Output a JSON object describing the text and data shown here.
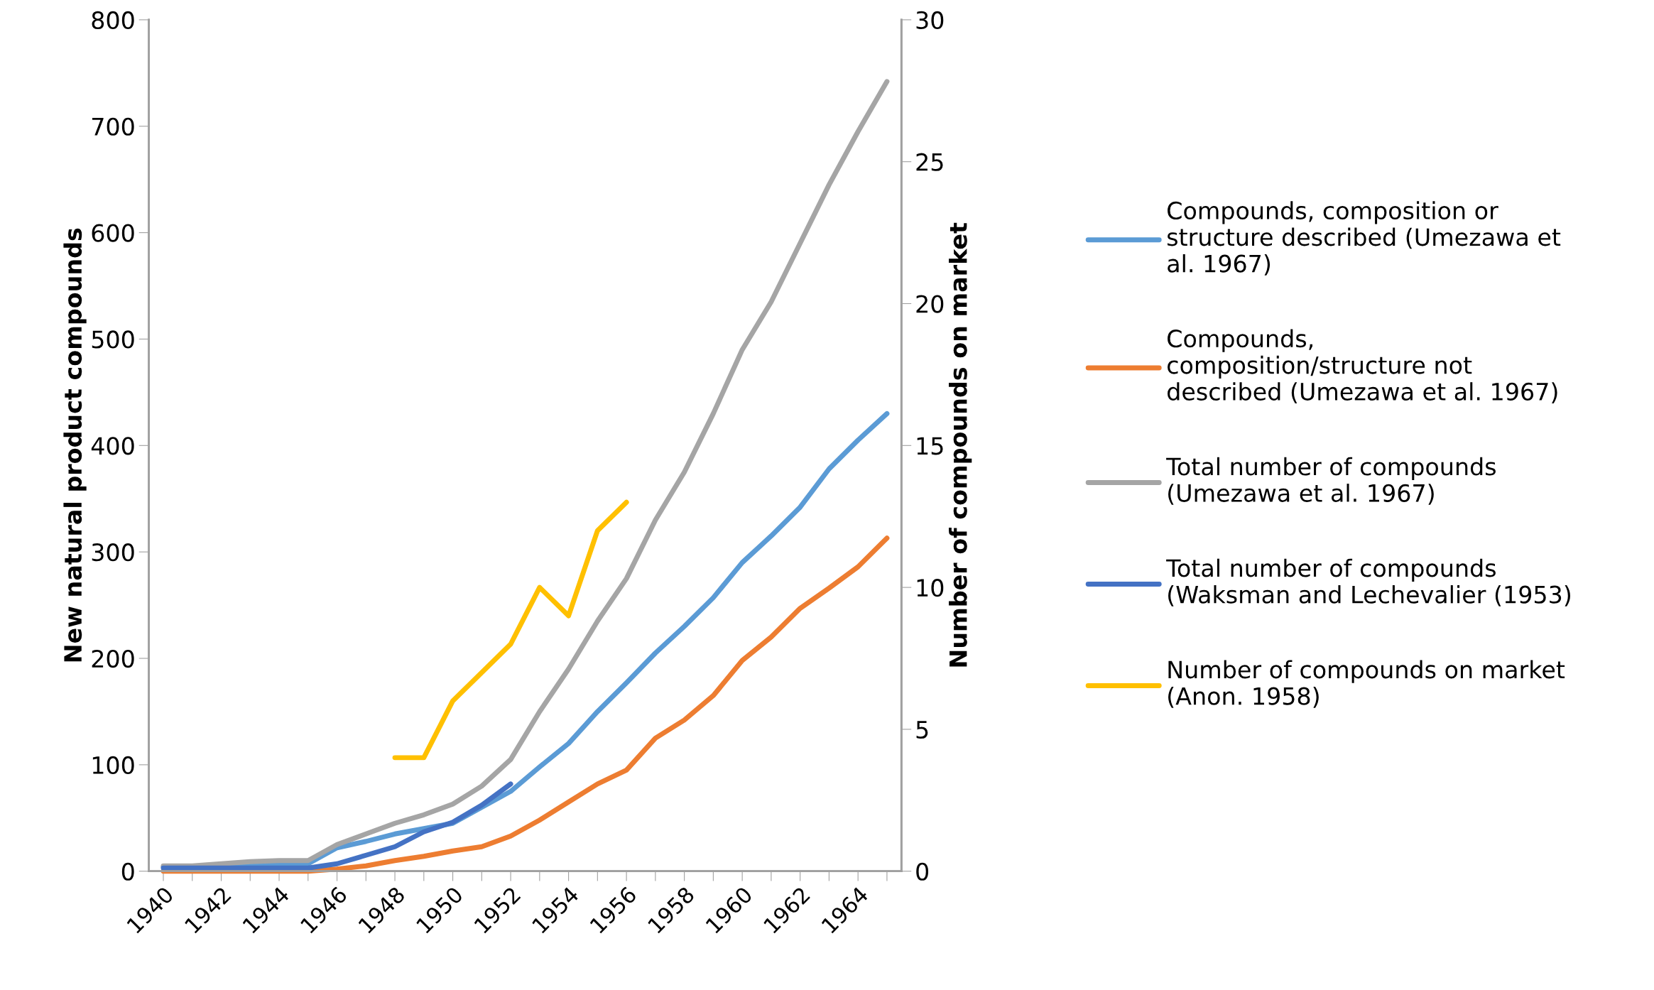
{
  "chart_data": {
    "type": "line",
    "categories": [
      "1940",
      null,
      "1942",
      null,
      "1944",
      null,
      "1946",
      null,
      "1948",
      null,
      "1950",
      null,
      "1952",
      null,
      "1954",
      null,
      "1956",
      null,
      "1958",
      null,
      "1960",
      null,
      "1962",
      null,
      "1964",
      null
    ],
    "ylabel": "New natural product compounds",
    "y2label": "Number of compounds on market",
    "ylim": [
      0,
      800
    ],
    "yticks": [
      0,
      100,
      200,
      300,
      400,
      500,
      600,
      700,
      800
    ],
    "y2lim": [
      0,
      30
    ],
    "y2ticks": [
      0,
      5,
      10,
      15,
      20,
      25,
      30
    ],
    "grid": false,
    "legend": "right",
    "marker": "none",
    "line_style": "solid",
    "series": [
      {
        "name": "Compounds, composition or\nstructure described (Umezawa et\nal. 1967)",
        "color": "#5b9bd5",
        "values": [
          4,
          4,
          5,
          6,
          7,
          7,
          22,
          28,
          35,
          40,
          45,
          60,
          75,
          98,
          120,
          150,
          177,
          205,
          230,
          257,
          290,
          315,
          342,
          378,
          405,
          430
        ]
      },
      {
        "name": "Compounds,\ncomposition/structure not\ndescribed (Umezawa et al. 1967)",
        "color": "#ed7d31",
        "values": [
          0,
          0,
          0,
          0,
          0,
          0,
          2,
          5,
          10,
          14,
          19,
          23,
          33,
          48,
          65,
          82,
          95,
          125,
          142,
          165,
          198,
          220,
          247,
          266,
          286,
          313
        ]
      },
      {
        "name": "Total number of compounds\n(Umezawa et al. 1967)",
        "color": "#a5a5a5",
        "values": [
          5,
          5,
          7,
          9,
          10,
          10,
          25,
          35,
          45,
          53,
          63,
          80,
          105,
          150,
          190,
          235,
          275,
          330,
          375,
          430,
          490,
          535,
          590,
          645,
          695,
          742
        ]
      },
      {
        "name": "Total number of compounds\n(Waksman and Lechevalier (1953)",
        "color": "#4472c4",
        "values": [
          3,
          3,
          3,
          3,
          3,
          3,
          7,
          15,
          23,
          37,
          46,
          62,
          82,
          null,
          null,
          null,
          null,
          null,
          null,
          null,
          null,
          null,
          null,
          null,
          null,
          null
        ]
      },
      {
        "name": "Number of compounds on market\n(Anon. 1958)",
        "color": "#ffc000",
        "axis": "y2",
        "values": [
          null,
          null,
          null,
          null,
          null,
          null,
          null,
          null,
          4,
          4,
          6,
          7,
          8,
          10,
          9,
          12,
          13,
          null,
          null,
          null,
          null,
          null,
          null,
          null,
          null,
          null
        ]
      }
    ]
  }
}
